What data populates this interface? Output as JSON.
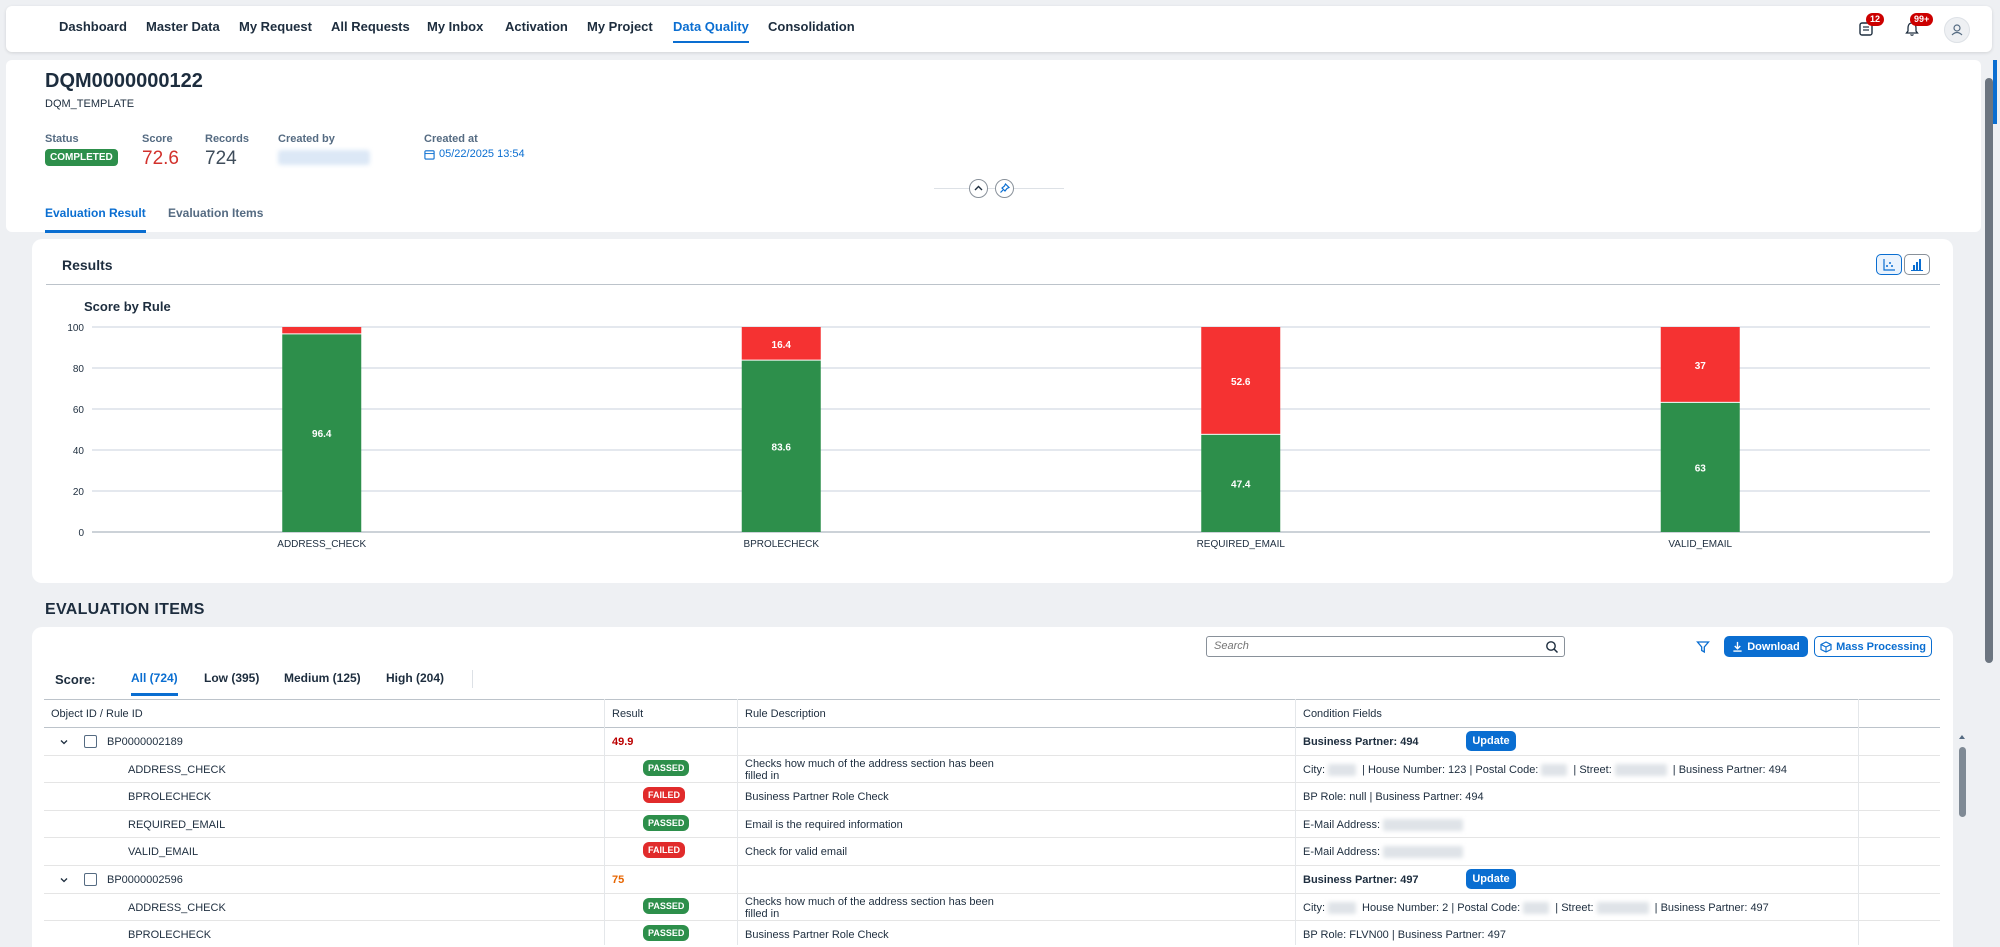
{
  "nav": {
    "items": [
      "Dashboard",
      "Master Data",
      "My Request",
      "All Requests",
      "My Inbox",
      "Activation",
      "My Project",
      "Data Quality",
      "Consolidation"
    ],
    "active": "Data Quality",
    "badges": {
      "tasks": "12",
      "notifications": "99+"
    }
  },
  "header": {
    "title": "DQM0000000122",
    "subtitle": "DQM_TEMPLATE",
    "status_label": "Status",
    "status_value": "COMPLETED",
    "score_label": "Score",
    "score_value": "72.6",
    "records_label": "Records",
    "records_value": "724",
    "created_by_label": "Created by",
    "created_at_label": "Created at",
    "created_at_value": "05/22/2025 13:54",
    "tabs": [
      "Evaluation Result",
      "Evaluation Items"
    ]
  },
  "results": {
    "title": "Results"
  },
  "chart_data": {
    "type": "bar",
    "stacked": true,
    "title": "Score by Rule",
    "categories": [
      "ADDRESS_CHECK",
      "BPROLECHECK",
      "REQUIRED_EMAIL",
      "VALID_EMAIL"
    ],
    "series": [
      {
        "values": [
          96.4,
          83.6,
          47.4,
          63
        ],
        "color": "#2d8f4b"
      },
      {
        "values": [
          3.6,
          16.4,
          52.6,
          37
        ],
        "color": "#f53232"
      }
    ],
    "data_labels": [
      [
        "96.4",
        "83.6",
        "47.4",
        "63"
      ],
      [
        "",
        "16.4",
        "52.6",
        "37"
      ]
    ],
    "yticks": [
      0,
      20,
      40,
      60,
      80,
      100
    ],
    "ylim": [
      0,
      100
    ],
    "grid": true
  },
  "evaluation": {
    "heading": "EVALUATION ITEMS",
    "search_placeholder": "Search",
    "download_label": "Download",
    "mass_label": "Mass Processing",
    "score_label": "Score:",
    "score_tabs": [
      "All (724)",
      "Low (395)",
      "Medium (125)",
      "High (204)"
    ],
    "columns": [
      "Object ID / Rule ID",
      "Result",
      "Rule Description",
      "Condition Fields"
    ],
    "update_label": "Update",
    "rows": [
      {
        "type": "parent",
        "id": "BP0000002189",
        "result": "49.9",
        "result_color": "#bb0000",
        "condition": "Business Partner: 494"
      },
      {
        "type": "child",
        "id": "ADDRESS_CHECK",
        "result": "PASSED",
        "status": "passed",
        "desc": "Checks how much of the address section has been filled in",
        "cond": [
          "City:",
          " | House Number: 123 | Postal Code:",
          " | Street:",
          " | Business Partner: 494"
        ]
      },
      {
        "type": "child",
        "id": "BPROLECHECK",
        "result": "FAILED",
        "status": "failed",
        "desc": "Business Partner Role Check",
        "cond": [
          "BP Role: null | Business Partner: 494"
        ]
      },
      {
        "type": "child",
        "id": "REQUIRED_EMAIL",
        "result": "PASSED",
        "status": "passed",
        "desc": "Email is the required information",
        "cond": [
          "E-Mail Address:"
        ]
      },
      {
        "type": "child",
        "id": "VALID_EMAIL",
        "result": "FAILED",
        "status": "failed",
        "desc": "Check for valid email",
        "cond": [
          "E-Mail Address:"
        ]
      },
      {
        "type": "parent",
        "id": "BP0000002596",
        "result": "75",
        "result_color": "#e76500",
        "condition": "Business Partner: 497"
      },
      {
        "type": "child",
        "id": "ADDRESS_CHECK",
        "result": "PASSED",
        "status": "passed",
        "desc": "Checks how much of the address section has been filled in",
        "cond": [
          "City:",
          " House Number: 2 | Postal Code:",
          " | Street:",
          " | Business Partner: 497"
        ]
      },
      {
        "type": "child",
        "id": "BPROLECHECK",
        "result": "PASSED",
        "status": "passed",
        "desc": "Business Partner Role Check",
        "cond": [
          "BP Role: FLVN00 | Business Partner: 497"
        ]
      }
    ]
  },
  "icons": [
    "tasks-icon",
    "bell-icon",
    "user-icon",
    "calendar-icon",
    "collapse-icon",
    "pin-icon",
    "chart-view-icon",
    "table-view-icon",
    "search-icon",
    "filter-icon",
    "download-icon",
    "mass-processing-icon",
    "chevron-down-icon"
  ]
}
